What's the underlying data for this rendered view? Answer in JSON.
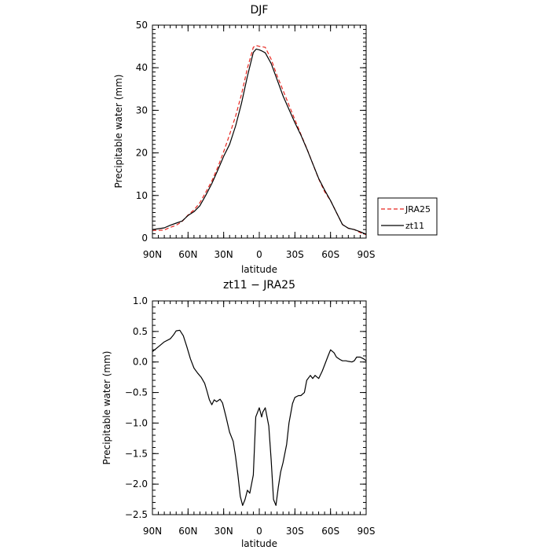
{
  "colors": {
    "jra25": "#e8251e",
    "zt11": "#000000",
    "frame": "#000000"
  },
  "legend": {
    "placement": "right",
    "entries": [
      {
        "label": "JRA25",
        "color": "#e8251e",
        "dash": true
      },
      {
        "label": "zt11",
        "color": "#000000",
        "dash": false
      }
    ]
  },
  "chart_data": [
    {
      "type": "line",
      "title": "DJF",
      "xlabel": "latitude",
      "ylabel": "Precipitable water (mm)",
      "xlim": [
        -90,
        90
      ],
      "ylim": [
        0,
        50
      ],
      "xticks": [
        {
          "value": -90,
          "label": "90N"
        },
        {
          "value": -60,
          "label": "60N"
        },
        {
          "value": -30,
          "label": "30N"
        },
        {
          "value": 0,
          "label": "0"
        },
        {
          "value": 30,
          "label": "30S"
        },
        {
          "value": 60,
          "label": "60S"
        },
        {
          "value": 90,
          "label": "90S"
        }
      ],
      "yticks": [
        {
          "value": 0,
          "label": "0"
        },
        {
          "value": 10,
          "label": "10"
        },
        {
          "value": 20,
          "label": "20"
        },
        {
          "value": 30,
          "label": "30"
        },
        {
          "value": 40,
          "label": "40"
        },
        {
          "value": 50,
          "label": "50"
        }
      ],
      "x": [
        -90,
        -85,
        -80,
        -75,
        -70,
        -65,
        -60,
        -55,
        -50,
        -45,
        -40,
        -35,
        -30,
        -25,
        -20,
        -15,
        -10,
        -5,
        -2.5,
        0,
        2.5,
        5,
        10,
        15,
        20,
        25,
        30,
        35,
        40,
        45,
        50,
        55,
        60,
        65,
        70,
        75,
        80,
        85,
        90
      ],
      "series": [
        {
          "name": "JRA25",
          "color": "#e8251e",
          "dash": true,
          "values": [
            1.8,
            1.8,
            1.9,
            2.5,
            3.0,
            3.9,
            5.4,
            6.6,
            8.3,
            10.8,
            13.4,
            16.6,
            20.3,
            24.3,
            28.6,
            33.7,
            39.9,
            44.8,
            45.2,
            45.0,
            44.9,
            44.8,
            42.0,
            38.1,
            34.7,
            31.2,
            27.8,
            24.4,
            21.1,
            17.5,
            13.9,
            10.9,
            8.8,
            6.0,
            3.2,
            2.3,
            2.0,
            1.3,
            0.8
          ]
        },
        {
          "name": "zt11",
          "color": "#000000",
          "dash": false,
          "values": [
            2.0,
            2.2,
            2.4,
            3.0,
            3.5,
            4.0,
            5.3,
            6.2,
            7.6,
            10.1,
            12.8,
            15.9,
            19.2,
            22.0,
            26.3,
            31.6,
            38.0,
            43.6,
            44.4,
            44.2,
            43.9,
            43.5,
            41.0,
            37.2,
            33.4,
            30.2,
            27.1,
            24.2,
            21.0,
            17.5,
            14.0,
            11.3,
            8.8,
            6.0,
            3.2,
            2.3,
            2.0,
            1.5,
            0.9
          ]
        }
      ]
    },
    {
      "type": "line",
      "title": "zt11 − JRA25",
      "xlabel": "latitude",
      "ylabel": "Precipitable water (mm)",
      "xlim": [
        -90,
        90
      ],
      "ylim": [
        -2.5,
        1.0
      ],
      "xticks": [
        {
          "value": -90,
          "label": "90N"
        },
        {
          "value": -60,
          "label": "60N"
        },
        {
          "value": -30,
          "label": "30N"
        },
        {
          "value": 0,
          "label": "0"
        },
        {
          "value": 30,
          "label": "30S"
        },
        {
          "value": 60,
          "label": "60S"
        },
        {
          "value": 90,
          "label": "90S"
        }
      ],
      "yticks": [
        {
          "value": 1.0,
          "label": "1.0"
        },
        {
          "value": 0.5,
          "label": "0.5"
        },
        {
          "value": 0.0,
          "label": "0.0"
        },
        {
          "value": -0.5,
          "label": "−0.5"
        },
        {
          "value": -1.0,
          "label": "−1.0"
        },
        {
          "value": -1.5,
          "label": "−1.5"
        },
        {
          "value": -2.0,
          "label": "−2.0"
        },
        {
          "value": -2.5,
          "label": "−2.5"
        }
      ],
      "x": [
        -90,
        -85,
        -80,
        -75,
        -72,
        -70,
        -67,
        -64,
        -61,
        -58,
        -55,
        -52,
        -49,
        -46,
        -44,
        -42,
        -40,
        -38,
        -36,
        -33,
        -31,
        -28,
        -25,
        -22,
        -20,
        -18,
        -16,
        -14,
        -12,
        -10,
        -8,
        -5,
        -3,
        0,
        2,
        3,
        5,
        8,
        10,
        12,
        14,
        16,
        18,
        20,
        23,
        25,
        28,
        30,
        33,
        35,
        38,
        40,
        43,
        45,
        47,
        50,
        53,
        55,
        58,
        60,
        63,
        65,
        68,
        70,
        73,
        75,
        78,
        80,
        82,
        85,
        88,
        90
      ],
      "series": [
        {
          "name": "zt11",
          "color": "#000000",
          "dash": false,
          "values": [
            0.17,
            0.25,
            0.33,
            0.38,
            0.45,
            0.51,
            0.52,
            0.43,
            0.25,
            0.05,
            -0.1,
            -0.18,
            -0.25,
            -0.35,
            -0.48,
            -0.62,
            -0.7,
            -0.62,
            -0.65,
            -0.61,
            -0.67,
            -0.9,
            -1.15,
            -1.3,
            -1.55,
            -1.85,
            -2.2,
            -2.35,
            -2.25,
            -2.1,
            -2.15,
            -1.85,
            -0.9,
            -0.75,
            -0.9,
            -0.82,
            -0.75,
            -1.05,
            -1.6,
            -2.25,
            -2.35,
            -2.05,
            -1.8,
            -1.65,
            -1.35,
            -1.0,
            -0.68,
            -0.58,
            -0.55,
            -0.55,
            -0.5,
            -0.3,
            -0.22,
            -0.27,
            -0.22,
            -0.27,
            -0.15,
            -0.05,
            0.1,
            0.2,
            0.15,
            0.08,
            0.04,
            0.02,
            0.02,
            0.01,
            0.0,
            0.02,
            0.08,
            0.08,
            0.05,
            0.02
          ]
        }
      ]
    }
  ]
}
